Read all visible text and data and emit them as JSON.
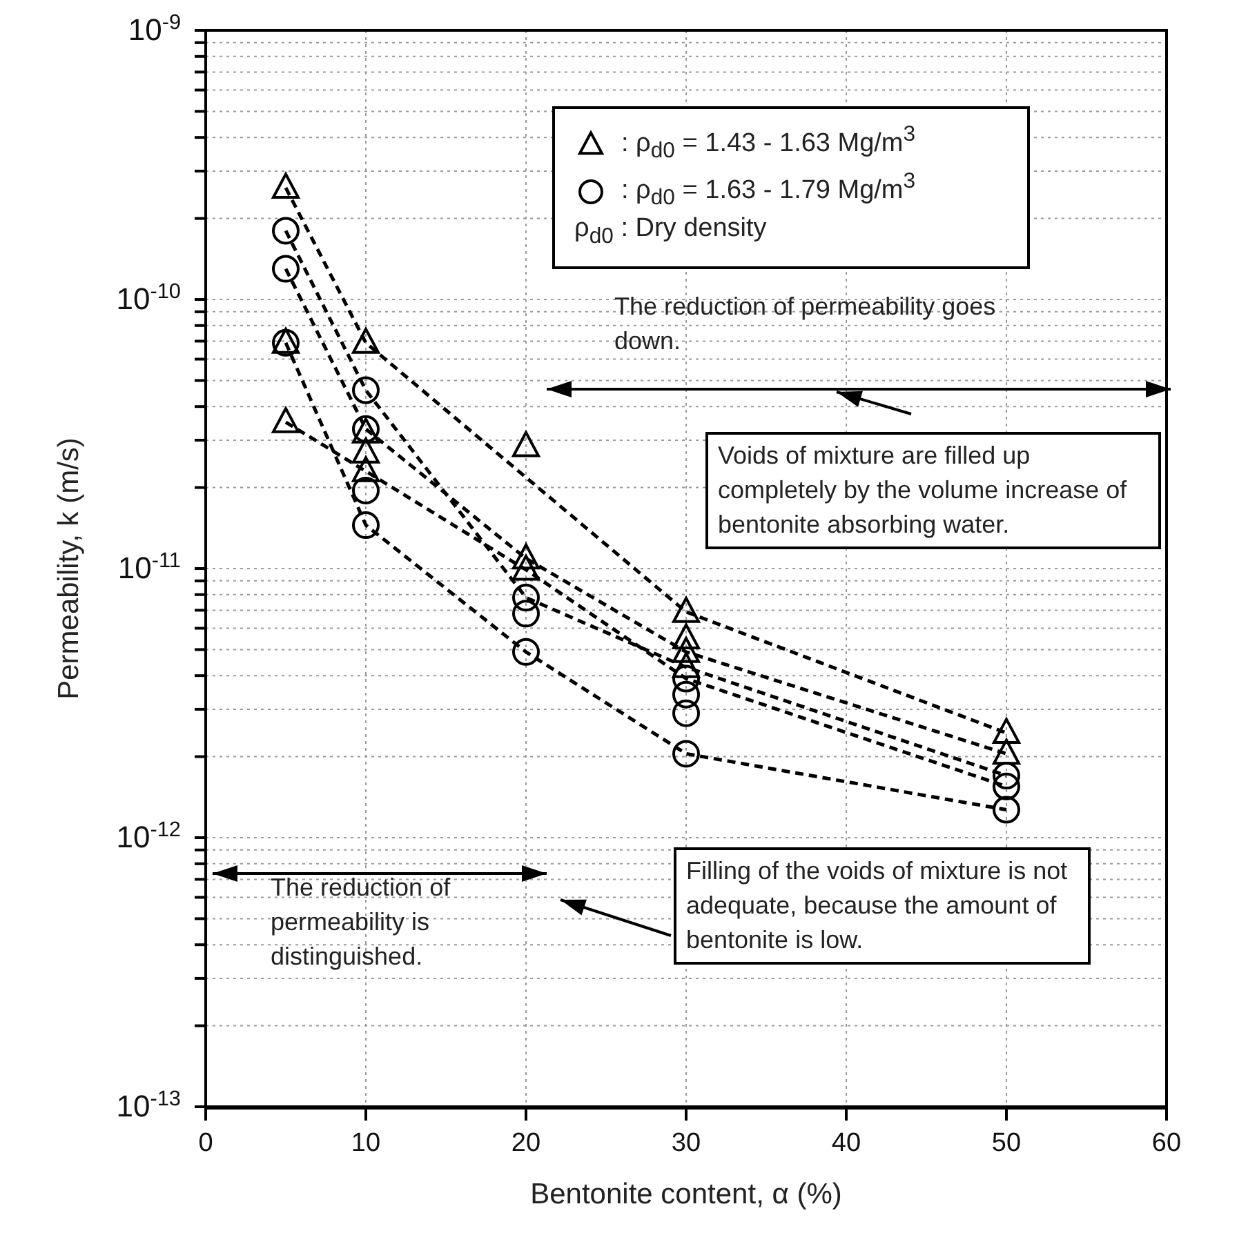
{
  "chart_data": {
    "type": "scatter",
    "xlabel": "Bentonite content, α (%)",
    "ylabel": "Permeability, k (m/s)",
    "xlim": [
      0,
      60
    ],
    "xticks": [
      0,
      10,
      20,
      30,
      40,
      50,
      60
    ],
    "ylim": [
      1e-13,
      1e-09
    ],
    "log": "y",
    "grid": true,
    "legend": "top right",
    "yticks": [
      {
        "value": 1e-13,
        "label": "10$^{-13}$"
      },
      {
        "value": 2e-13,
        "label": null
      },
      {
        "value": 3e-13,
        "label": null
      },
      {
        "value": 4e-13,
        "label": null
      },
      {
        "value": 5e-13,
        "label": null
      },
      {
        "value": 6e-13,
        "label": null
      },
      {
        "value": 7e-13,
        "label": null
      },
      {
        "value": 8e-13,
        "label": null
      },
      {
        "value": 9e-13,
        "label": null
      },
      {
        "value": 1e-12,
        "label": "10$^{-12}$"
      },
      {
        "value": 2e-12,
        "label": null
      },
      {
        "value": 3e-12,
        "label": null
      },
      {
        "value": 4e-12,
        "label": null
      },
      {
        "value": 5e-12,
        "label": null
      },
      {
        "value": 6e-12,
        "label": null
      },
      {
        "value": 7e-12,
        "label": null
      },
      {
        "value": 8e-12,
        "label": null
      },
      {
        "value": 9e-12,
        "label": null
      },
      {
        "value": 1e-11,
        "label": "10$^{-11}$"
      },
      {
        "value": 2e-11,
        "label": null
      },
      {
        "value": 3e-11,
        "label": null
      },
      {
        "value": 4e-11,
        "label": null
      },
      {
        "value": 5e-11,
        "label": null
      },
      {
        "value": 6e-11,
        "label": null
      },
      {
        "value": 7e-11,
        "label": null
      },
      {
        "value": 8e-11,
        "label": null
      },
      {
        "value": 9e-11,
        "label": null
      },
      {
        "value": 1e-10,
        "label": "10$^{-10}$"
      },
      {
        "value": 2e-10,
        "label": null
      },
      {
        "value": 3e-10,
        "label": null
      },
      {
        "value": 4e-10,
        "label": null
      },
      {
        "value": 5e-10,
        "label": null
      },
      {
        "value": 6e-10,
        "label": null
      },
      {
        "value": 7e-10,
        "label": null
      },
      {
        "value": 8e-10,
        "label": null
      },
      {
        "value": 9e-10,
        "label": null
      },
      {
        "value": 1e-09,
        "label": "10$^{-9}$"
      }
    ],
    "series": [
      {
        "name": ": ρ$_{d0}$ = 1.43 - 1.63 Mg/m$^{3}$",
        "marker": "triangle",
        "color": "#000000",
        "x": [
          5,
          5,
          5,
          10,
          10,
          10,
          10,
          20,
          20,
          20,
          30,
          30,
          30,
          30,
          50,
          50
        ],
        "values": [
          2.6e-10,
          6.9e-11,
          3.5e-11,
          6.9e-11,
          3.2e-11,
          2.7e-11,
          2.3e-11,
          2.85e-11,
          1.09e-11,
          9.9e-12,
          6.9e-12,
          5.5e-12,
          4.9e-12,
          4.3e-12,
          2.45e-12,
          2.05e-12
        ]
      },
      {
        "name": ": ρ$_{d0}$ = 1.63 - 1.79 Mg/m$^{3}$",
        "marker": "circle",
        "color": "#000000",
        "x": [
          5,
          5,
          5,
          10,
          10,
          10,
          10,
          20,
          20,
          20,
          30,
          30,
          30,
          30,
          50,
          50,
          50
        ],
        "values": [
          1.8e-10,
          1.3e-10,
          6.9e-11,
          4.6e-11,
          3.3e-11,
          1.95e-11,
          1.45e-11,
          7.8e-12,
          6.8e-12,
          4.9e-12,
          3.9e-12,
          3.4e-12,
          2.9e-12,
          2.05e-12,
          1.7e-12,
          1.55e-12,
          1.27e-12
        ]
      },
      {
        "type": "line",
        "line_style": "dashed",
        "marker": "none",
        "color": "#000000",
        "x": [
          5,
          10,
          30,
          50
        ],
        "values": [
          2.6e-10,
          6.9e-11,
          6.9e-12,
          2.45e-12
        ]
      },
      {
        "type": "line",
        "line_style": "dashed",
        "marker": "none",
        "color": "#000000",
        "x": [
          5,
          10,
          20,
          30,
          50
        ],
        "values": [
          1.8e-10,
          4.6e-11,
          7.8e-12,
          4.3e-12,
          1.7e-12
        ]
      },
      {
        "type": "line",
        "line_style": "dashed",
        "marker": "none",
        "color": "#000000",
        "x": [
          5,
          10,
          20,
          30,
          50
        ],
        "values": [
          1.3e-10,
          3.3e-11,
          1.09e-11,
          4.9e-12,
          2.05e-12
        ]
      },
      {
        "type": "line",
        "line_style": "dashed",
        "marker": "none",
        "color": "#000000",
        "x": [
          5,
          10,
          20,
          30,
          50
        ],
        "values": [
          6.9e-11,
          1.45e-11,
          4.9e-12,
          2.05e-12,
          1.27e-12
        ]
      },
      {
        "type": "line",
        "line_style": "dashed",
        "marker": "none",
        "color": "#000000",
        "x": [
          5,
          10,
          20,
          30,
          50
        ],
        "values": [
          3.5e-11,
          2.3e-11,
          9.9e-12,
          3.9e-12,
          1.55e-12
        ]
      }
    ],
    "annotations": [
      "The reduction of permeability goes down.",
      "Voids of mixture are filled up completely by the volume increase of bentonite absorbing water.",
      "The reduction of permeability is distinguished.",
      "Filling of the voids of mixture is not adequate, because the amount of bentonite is low.",
      "ρ$_{d0}$ : Dry density"
    ]
  }
}
